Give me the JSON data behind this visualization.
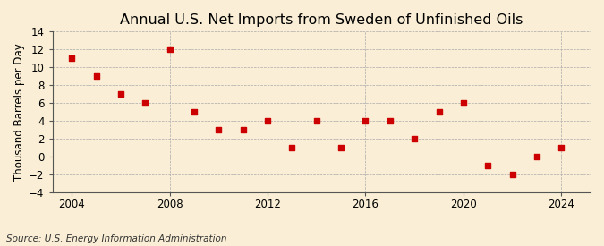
{
  "title": "Annual U.S. Net Imports from Sweden of Unfinished Oils",
  "ylabel": "Thousand Barrels per Day",
  "source": "Source: U.S. Energy Information Administration",
  "background_color": "#faefd6",
  "plot_bg_color": "#faefd6",
  "years": [
    2004,
    2005,
    2006,
    2007,
    2008,
    2009,
    2010,
    2011,
    2012,
    2013,
    2014,
    2015,
    2016,
    2017,
    2018,
    2019,
    2020,
    2021,
    2022,
    2023,
    2024
  ],
  "values": [
    11,
    9,
    7,
    6,
    12,
    5,
    3,
    3,
    4,
    1,
    4,
    1,
    4,
    4,
    2,
    5,
    6,
    -1,
    -2,
    0,
    1
  ],
  "marker_color": "#cc0000",
  "marker_size": 18,
  "ylim": [
    -4,
    14
  ],
  "yticks": [
    -4,
    -2,
    0,
    2,
    4,
    6,
    8,
    10,
    12,
    14
  ],
  "xlim": [
    2003.2,
    2025.2
  ],
  "xticks": [
    2004,
    2008,
    2012,
    2016,
    2020,
    2024
  ],
  "grid_color": "#aaaaaa",
  "title_fontsize": 11.5,
  "label_fontsize": 8.5,
  "tick_fontsize": 8.5,
  "source_fontsize": 7.5
}
